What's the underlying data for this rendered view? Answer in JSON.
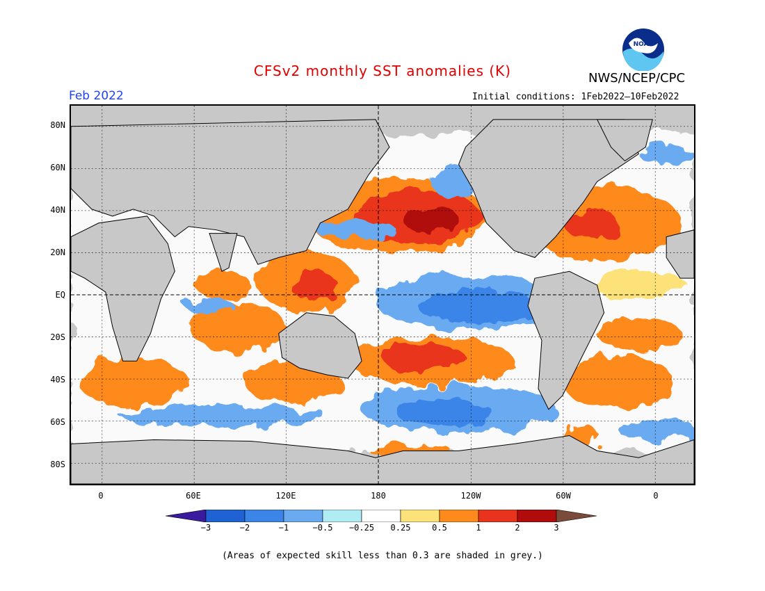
{
  "header": {
    "title": "CFSv2 monthly SST anomalies (K)",
    "agency": "NWS/NCEP/CPC",
    "month": "Feb 2022",
    "initial_conditions": "Initial conditions: 1Feb2022–10Feb2022",
    "logo_text": "NOAA"
  },
  "axes": {
    "lat_labels": [
      "80N",
      "60N",
      "40N",
      "20N",
      "EQ",
      "20S",
      "40S",
      "60S",
      "80S"
    ],
    "lon_labels": [
      "0",
      "60E",
      "120E",
      "180",
      "120W",
      "60W",
      "0"
    ]
  },
  "colorbar": {
    "labels": [
      "−3",
      "−2",
      "−1",
      "−0.5",
      "−0.25",
      "0.25",
      "0.5",
      "1",
      "2",
      "3"
    ],
    "colors": [
      "#3a1a9e",
      "#1f62d4",
      "#3b85e8",
      "#6aaaf0",
      "#b0ecf4",
      "#ffffff",
      "#fde27a",
      "#ff8a1c",
      "#e8341c",
      "#b00c0c",
      "#7a4a3a"
    ]
  },
  "footnote": "(Areas of expected skill less than 0.3 are shaded in grey.)"
}
